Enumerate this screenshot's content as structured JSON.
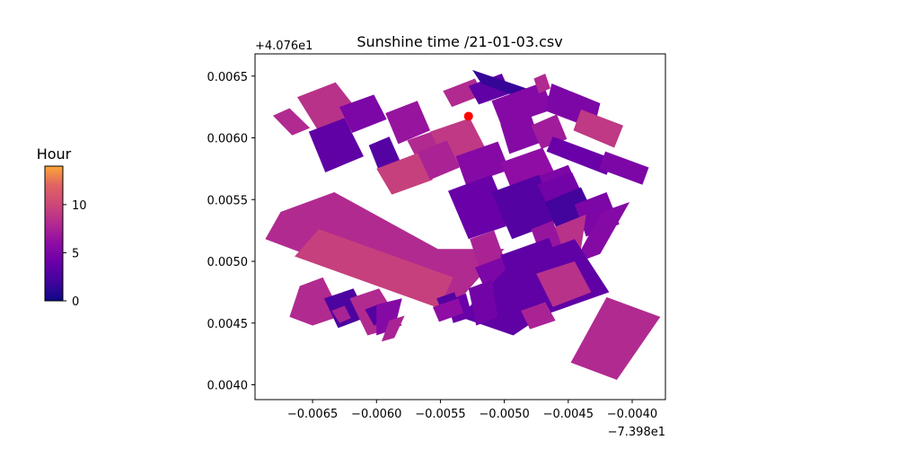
{
  "chart_data": {
    "type": "heatmap",
    "title": "Sunshine time /21-01-03.csv",
    "colormap": "plasma",
    "x_offset_label": "−7.398e1",
    "y_offset_label": "+4.076e1",
    "xlim": [
      -0.00695,
      -0.00374
    ],
    "ylim": [
      0.00388,
      0.00668
    ],
    "x_ticks": [
      -0.0065,
      -0.006,
      -0.0055,
      -0.005,
      -0.0045,
      -0.004
    ],
    "x_tick_labels": [
      "−0.0065",
      "−0.0060",
      "−0.0055",
      "−0.0050",
      "−0.0045",
      "−0.0040"
    ],
    "y_ticks": [
      0.004,
      0.0045,
      0.005,
      0.0055,
      0.006,
      0.0065
    ],
    "y_tick_labels": [
      "0.0040",
      "0.0045",
      "0.0050",
      "0.0055",
      "0.0060",
      "0.0065"
    ],
    "colorbar": {
      "title": "Hour",
      "range": [
        0,
        14
      ],
      "ticks": [
        0,
        5,
        10
      ],
      "tick_labels": [
        "0",
        "5",
        "10"
      ]
    },
    "marker": {
      "x": -0.00528,
      "y": 0.006175,
      "color": "#ff0000"
    },
    "buildings": [
      {
        "poly": [
          [
            -0.00662,
            0.00633
          ],
          [
            -0.00632,
            0.00645
          ],
          [
            -0.00607,
            0.00612
          ],
          [
            -0.00641,
            0.00598
          ]
        ],
        "value": 8.5
      },
      {
        "poly": [
          [
            -0.00681,
            0.00618
          ],
          [
            -0.00668,
            0.00624
          ],
          [
            -0.00652,
            0.00608
          ],
          [
            -0.00666,
            0.00602
          ]
        ],
        "value": 8.0
      },
      {
        "poly": [
          [
            -0.00653,
            0.00605
          ],
          [
            -0.00625,
            0.00616
          ],
          [
            -0.0061,
            0.00585
          ],
          [
            -0.0064,
            0.00572
          ]
        ],
        "value": 3.5
      },
      {
        "poly": [
          [
            -0.00629,
            0.00625
          ],
          [
            -0.00602,
            0.00635
          ],
          [
            -0.00592,
            0.00615
          ],
          [
            -0.00619,
            0.00604
          ]
        ],
        "value": 5.0
      },
      {
        "poly": [
          [
            -0.00593,
            0.0062
          ],
          [
            -0.00568,
            0.0063
          ],
          [
            -0.00558,
            0.00606
          ],
          [
            -0.00583,
            0.00595
          ]
        ],
        "value": 6.5
      },
      {
        "poly": [
          [
            -0.00606,
            0.00594
          ],
          [
            -0.0059,
            0.00601
          ],
          [
            -0.00581,
            0.0058
          ],
          [
            -0.00598,
            0.00573
          ]
        ],
        "value": 3.0
      },
      {
        "poly": [
          [
            -0.00576,
            0.00598
          ],
          [
            -0.00554,
            0.00606
          ],
          [
            -0.00545,
            0.00588
          ],
          [
            -0.00567,
            0.0058
          ]
        ],
        "value": 8.0
      },
      {
        "poly": [
          [
            -0.00558,
            0.00605
          ],
          [
            -0.00527,
            0.00616
          ],
          [
            -0.00512,
            0.00586
          ],
          [
            -0.00543,
            0.00574
          ]
        ],
        "value": 9.0
      },
      {
        "poly": [
          [
            -0.006,
            0.00575
          ],
          [
            -0.00567,
            0.00588
          ],
          [
            -0.00556,
            0.00566
          ],
          [
            -0.00588,
            0.00554
          ]
        ],
        "value": 9.5
      },
      {
        "poly": [
          [
            -0.00568,
            0.00588
          ],
          [
            -0.00545,
            0.00598
          ],
          [
            -0.00535,
            0.00576
          ],
          [
            -0.00558,
            0.00566
          ]
        ],
        "value": 7.5
      },
      {
        "poly": [
          [
            -0.00548,
            0.00638
          ],
          [
            -0.00523,
            0.00648
          ],
          [
            -0.00516,
            0.00635
          ],
          [
            -0.00541,
            0.00625
          ]
        ],
        "value": 8.0
      },
      {
        "poly": [
          [
            -0.00528,
            0.00642
          ],
          [
            -0.00502,
            0.00652
          ],
          [
            -0.00495,
            0.00636
          ],
          [
            -0.0052,
            0.00627
          ]
        ],
        "value": 3.5
      },
      {
        "poly": [
          [
            -0.00525,
            0.00655
          ],
          [
            -0.0046,
            0.00632
          ],
          [
            -0.00455,
            0.0062
          ],
          [
            -0.00518,
            0.00644
          ]
        ],
        "value": 1.5
      },
      {
        "poly": [
          [
            -0.0051,
            0.0063
          ],
          [
            -0.0047,
            0.00645
          ],
          [
            -0.00462,
            0.00623
          ],
          [
            -0.00502,
            0.00609
          ]
        ],
        "value": 5.5
      },
      {
        "poly": [
          [
            -0.00463,
            0.00644
          ],
          [
            -0.00425,
            0.00628
          ],
          [
            -0.0043,
            0.00607
          ],
          [
            -0.00468,
            0.00622
          ]
        ],
        "value": 5.0
      },
      {
        "poly": [
          [
            -0.0044,
            0.00623
          ],
          [
            -0.00407,
            0.0061
          ],
          [
            -0.00414,
            0.00592
          ],
          [
            -0.00446,
            0.00606
          ]
        ],
        "value": 9.0
      },
      {
        "poly": [
          [
            -0.00477,
            0.00648
          ],
          [
            -0.00468,
            0.00652
          ],
          [
            -0.00464,
            0.0064
          ],
          [
            -0.00473,
            0.00636
          ]
        ],
        "value": 8.0
      },
      {
        "poly": [
          [
            -0.00503,
            0.00611
          ],
          [
            -0.0048,
            0.00621
          ],
          [
            -0.00472,
            0.00596
          ],
          [
            -0.00496,
            0.00587
          ]
        ],
        "value": 5.5
      },
      {
        "poly": [
          [
            -0.00479,
            0.0061
          ],
          [
            -0.00459,
            0.00619
          ],
          [
            -0.00451,
            0.00599
          ],
          [
            -0.00471,
            0.00591
          ]
        ],
        "value": 7.0
      },
      {
        "poly": [
          [
            -0.00462,
            0.00601
          ],
          [
            -0.00415,
            0.00583
          ],
          [
            -0.0042,
            0.0057
          ],
          [
            -0.00467,
            0.00589
          ]
        ],
        "value": 4.0
      },
      {
        "poly": [
          [
            -0.00421,
            0.00589
          ],
          [
            -0.00387,
            0.00576
          ],
          [
            -0.00392,
            0.00562
          ],
          [
            -0.00426,
            0.00575
          ]
        ],
        "value": 5.0
      },
      {
        "poly": [
          [
            -0.00538,
            0.00585
          ],
          [
            -0.00505,
            0.00597
          ],
          [
            -0.00496,
            0.00574
          ],
          [
            -0.0053,
            0.00562
          ]
        ],
        "value": 5.5
      },
      {
        "poly": [
          [
            -0.00503,
            0.0058
          ],
          [
            -0.0047,
            0.00592
          ],
          [
            -0.0046,
            0.0057
          ],
          [
            -0.00494,
            0.00557
          ]
        ],
        "value": 6.0
      },
      {
        "poly": [
          [
            -0.00483,
            0.00565
          ],
          [
            -0.0045,
            0.00578
          ],
          [
            -0.00442,
            0.0056
          ],
          [
            -0.00475,
            0.00547
          ]
        ],
        "value": 5.0
      },
      {
        "poly": [
          [
            -0.00544,
            0.00557
          ],
          [
            -0.0051,
            0.0057
          ],
          [
            -0.00494,
            0.0053
          ],
          [
            -0.00528,
            0.00518
          ]
        ],
        "value": 4.0
      },
      {
        "poly": [
          [
            -0.0051,
            0.00556
          ],
          [
            -0.00473,
            0.0057
          ],
          [
            -0.00458,
            0.00532
          ],
          [
            -0.00494,
            0.00518
          ]
        ],
        "value": 3.0
      },
      {
        "poly": [
          [
            -0.00474,
            0.00562
          ],
          [
            -0.00447,
            0.00572
          ],
          [
            -0.00437,
            0.0055
          ],
          [
            -0.00464,
            0.0054
          ]
        ],
        "value": 4.5
      },
      {
        "poly": [
          [
            -0.00468,
            0.00548
          ],
          [
            -0.0044,
            0.0056
          ],
          [
            -0.0043,
            0.00538
          ],
          [
            -0.00459,
            0.00526
          ]
        ],
        "value": 2.0
      },
      {
        "poly": [
          [
            -0.00445,
            0.00546
          ],
          [
            -0.0042,
            0.00556
          ],
          [
            -0.0041,
            0.0053
          ],
          [
            -0.00436,
            0.0052
          ]
        ],
        "value": 5.0
      },
      {
        "poly": [
          [
            -0.00424,
            0.0054
          ],
          [
            -0.00402,
            0.00548
          ],
          [
            -0.00425,
            0.00506
          ],
          [
            -0.00446,
            0.00498
          ]
        ],
        "value": 5.5
      },
      {
        "poly": [
          [
            -0.0046,
            0.00528
          ],
          [
            -0.00436,
            0.00538
          ],
          [
            -0.0044,
            0.0051
          ],
          [
            -0.00462,
            0.00502
          ]
        ],
        "value": 8.5
      },
      {
        "poly": [
          [
            -0.00479,
            0.00526
          ],
          [
            -0.00462,
            0.00533
          ],
          [
            -0.00455,
            0.00512
          ],
          [
            -0.00472,
            0.00506
          ]
        ],
        "value": 6.5
      },
      {
        "poly": [
          [
            -0.00675,
            0.0054
          ],
          [
            -0.00633,
            0.00556
          ],
          [
            -0.00552,
            0.0051
          ],
          [
            -0.005,
            0.0051
          ],
          [
            -0.00534,
            0.0047
          ],
          [
            -0.00556,
            0.00467
          ],
          [
            -0.00687,
            0.00518
          ]
        ],
        "value": 8.0
      },
      {
        "poly": [
          [
            -0.00645,
            0.00526
          ],
          [
            -0.0054,
            0.00487
          ],
          [
            -0.00551,
            0.00462
          ],
          [
            -0.00664,
            0.00504
          ]
        ],
        "value": 9.5
      },
      {
        "poly": [
          [
            -0.00527,
            0.00518
          ],
          [
            -0.00508,
            0.00525
          ],
          [
            -0.00495,
            0.00488
          ],
          [
            -0.00515,
            0.0048
          ]
        ],
        "value": 7.5
      },
      {
        "poly": [
          [
            -0.00523,
            0.00495
          ],
          [
            -0.00497,
            0.00505
          ],
          [
            -0.00488,
            0.00485
          ],
          [
            -0.00514,
            0.00475
          ]
        ],
        "value": 5.0
      },
      {
        "poly": [
          [
            -0.00503,
            0.00505
          ],
          [
            -0.00465,
            0.00519
          ],
          [
            -0.00457,
            0.00497
          ],
          [
            -0.00495,
            0.00483
          ]
        ],
        "value": 3.5
      },
      {
        "poly": [
          [
            -0.00505,
            0.00482
          ],
          [
            -0.00488,
            0.00489
          ],
          [
            -0.00482,
            0.00473
          ],
          [
            -0.00498,
            0.00467
          ]
        ],
        "value": 6.0
      },
      {
        "poly": [
          [
            -0.00493,
            0.005
          ],
          [
            -0.00445,
            0.00518
          ],
          [
            -0.00418,
            0.00475
          ],
          [
            -0.0047,
            0.00456
          ],
          [
            -0.00493,
            0.0044
          ],
          [
            -0.00535,
            0.00455
          ]
        ],
        "value": 3.5
      },
      {
        "poly": [
          [
            -0.00475,
            0.0049
          ],
          [
            -0.00445,
            0.005
          ],
          [
            -0.00432,
            0.00475
          ],
          [
            -0.00462,
            0.00463
          ]
        ],
        "value": 8.5
      },
      {
        "poly": [
          [
            -0.00487,
            0.0046
          ],
          [
            -0.00468,
            0.00467
          ],
          [
            -0.0046,
            0.00452
          ],
          [
            -0.0048,
            0.00445
          ]
        ],
        "value": 7.5
      },
      {
        "poly": [
          [
            -0.00528,
            0.00478
          ],
          [
            -0.0051,
            0.00485
          ],
          [
            -0.00505,
            0.00455
          ],
          [
            -0.00522,
            0.00448
          ]
        ],
        "value": 4.5
      },
      {
        "poly": [
          [
            -0.00545,
            0.00468
          ],
          [
            -0.0053,
            0.00474
          ],
          [
            -0.00525,
            0.00455
          ],
          [
            -0.0054,
            0.0045
          ]
        ],
        "value": 4.0
      },
      {
        "poly": [
          [
            -0.00553,
            0.0047
          ],
          [
            -0.00539,
            0.00475
          ],
          [
            -0.00535,
            0.00462
          ],
          [
            -0.00548,
            0.00457
          ]
        ],
        "value": 3.0
      },
      {
        "poly": [
          [
            -0.00556,
            0.00463
          ],
          [
            -0.00536,
            0.0047
          ],
          [
            -0.00532,
            0.00458
          ],
          [
            -0.00551,
            0.00451
          ]
        ],
        "value": 6.0
      },
      {
        "poly": [
          [
            -0.0066,
            0.0048
          ],
          [
            -0.00642,
            0.00487
          ],
          [
            -0.00627,
            0.00456
          ],
          [
            -0.0065,
            0.00448
          ],
          [
            -0.00668,
            0.00455
          ]
        ],
        "value": 8.0
      },
      {
        "poly": [
          [
            -0.00641,
            0.0047
          ],
          [
            -0.00618,
            0.00478
          ],
          [
            -0.00607,
            0.00455
          ],
          [
            -0.0063,
            0.00446
          ]
        ],
        "value": 2.5
      },
      {
        "poly": [
          [
            -0.00635,
            0.0046
          ],
          [
            -0.00625,
            0.00464
          ],
          [
            -0.0062,
            0.00454
          ],
          [
            -0.00629,
            0.0045
          ]
        ],
        "value": 7.5
      },
      {
        "poly": [
          [
            -0.00621,
            0.0047
          ],
          [
            -0.00598,
            0.00478
          ],
          [
            -0.0058,
            0.00448
          ],
          [
            -0.00607,
            0.0044
          ]
        ],
        "value": 8.0
      },
      {
        "poly": [
          [
            -0.00609,
            0.00461
          ],
          [
            -0.00596,
            0.00466
          ],
          [
            -0.0059,
            0.00452
          ],
          [
            -0.00602,
            0.00448
          ]
        ],
        "value": 3.0
      },
      {
        "poly": [
          [
            -0.006,
            0.00465
          ],
          [
            -0.0058,
            0.0047
          ],
          [
            -0.00586,
            0.00445
          ],
          [
            -0.006,
            0.0044
          ]
        ],
        "value": 5.5
      },
      {
        "poly": [
          [
            -0.0059,
            0.00452
          ],
          [
            -0.00578,
            0.00456
          ],
          [
            -0.00586,
            0.00438
          ],
          [
            -0.00596,
            0.00435
          ]
        ],
        "value": 7.5
      },
      {
        "poly": [
          [
            -0.0042,
            0.00471
          ],
          [
            -0.00378,
            0.00455
          ],
          [
            -0.00412,
            0.00404
          ],
          [
            -0.00448,
            0.00418
          ]
        ],
        "value": 8.0
      }
    ]
  }
}
